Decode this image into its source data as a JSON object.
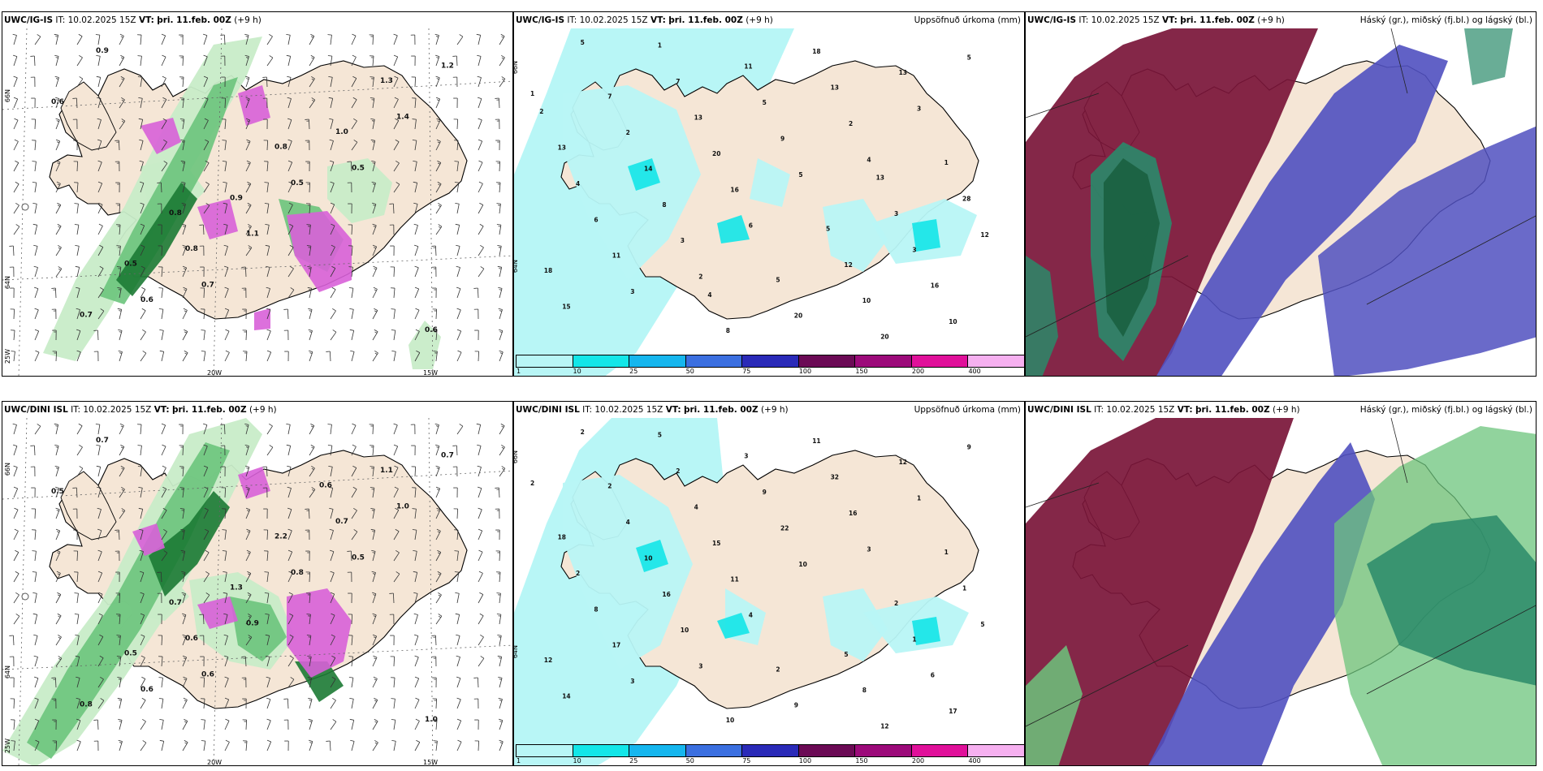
{
  "row1": {
    "p1": {
      "src": "UWC/IG-IS",
      "it": "IT: 10.02.2025 15Z",
      "vt_label": "VT:",
      "vt": "þri. 11.feb. 00Z",
      "lead": "(+9 h)"
    },
    "p2": {
      "src": "UWC/IG-IS",
      "it": "IT: 10.02.2025 15Z",
      "vt_label": "VT:",
      "vt": "þri. 11.feb. 00Z",
      "lead": "(+9 h)",
      "right": "Uppsöfnuð úrkoma (mm)"
    },
    "p3": {
      "src": "UWC/IG-IS",
      "it": "IT: 10.02.2025 15Z",
      "vt_label": "VT:",
      "vt": "þri. 11.feb. 00Z",
      "lead": "(+9 h)",
      "right": "Háský (gr.), miðský (fj.bl.) og lágský (bl.)"
    }
  },
  "row2": {
    "p1": {
      "src": "UWC/DINI ISL",
      "it": "IT: 10.02.2025 15Z",
      "vt_label": "VT:",
      "vt": "þri. 11.feb. 00Z",
      "lead": "(+9 h)"
    },
    "p2": {
      "src": "UWC/DINI ISL",
      "it": "IT: 10.02.2025 15Z",
      "vt_label": "VT:",
      "vt": "þri. 11.feb. 00Z",
      "lead": "(+9 h)",
      "right": "Uppsöfnuð úrkoma (mm)"
    },
    "p3": {
      "src": "UWC/DINI ISL",
      "it": "IT: 10.02.2025 15Z",
      "vt_label": "VT:",
      "vt": "þri. 11.feb. 00Z",
      "lead": "(+9 h)",
      "right": "Háský (gr.), miðský (fj.bl.) og lágský (bl.)"
    }
  },
  "axes": {
    "lat66": "66N",
    "lat64": "64N",
    "lon25": "25W",
    "lon20": "20W",
    "lon15": "15W"
  },
  "colorbar": {
    "ticks": [
      "1",
      "10",
      "25",
      "50",
      "75",
      "100",
      "150",
      "200",
      "400"
    ],
    "colors": [
      "#b8f6f6",
      "#13e6e8",
      "#16b6ee",
      "#3b6fe0",
      "#2a2ab8",
      "#6b0a55",
      "#9c0a7a",
      "#e0109a",
      "#f6b0f0"
    ]
  },
  "colors": {
    "land": "#f5e6d6",
    "sea_precip": "#b8f6f6",
    "green1": "#c8ecc8",
    "green2": "#6cc47c",
    "green3": "#1c7a34",
    "magenta": "#d860d8",
    "maroon": "#7a1538",
    "blue": "#5050c0",
    "teal": "#2a8a6a"
  },
  "precip_labels_row1": [
    "1",
    "2",
    "4",
    "5",
    "6",
    "3",
    "3",
    "5",
    "5",
    "3",
    "2",
    "15",
    "16",
    "13",
    "11",
    "9",
    "10",
    "8",
    "13",
    "18",
    "20",
    "20",
    "6",
    "5",
    "16",
    "14",
    "18",
    "12",
    "13",
    "10",
    "4",
    "11",
    "3",
    "2",
    "20",
    "28",
    "7",
    "12",
    "13",
    "8",
    "3",
    "7",
    "5",
    "1",
    "1",
    "5",
    "2",
    "4",
    "13"
  ],
  "precip_labels_row2": [
    "2",
    "3",
    "3",
    "2",
    "4",
    "1",
    "3",
    "10",
    "9",
    "10",
    "16",
    "14",
    "11",
    "12",
    "17",
    "22",
    "17",
    "16",
    "32",
    "12",
    "15",
    "12",
    "8",
    "9",
    "6",
    "10",
    "11",
    "5",
    "4",
    "8",
    "2",
    "3",
    "1",
    "4",
    "9",
    "1",
    "2",
    "5",
    "18",
    "10",
    "2",
    "2",
    "2",
    "1",
    "5"
  ],
  "wind_labels_row1": [
    "0.6",
    "0.7",
    "0.5",
    "0.9",
    "1.1",
    "1.4",
    "0.6",
    "0.5",
    "1.2",
    "0.8",
    "1.0",
    "0.7",
    "0.9",
    "1.3",
    "0.5",
    "0.8",
    "0.6",
    "0.8"
  ],
  "wind_labels_row2": [
    "0.5",
    "0.6",
    "0.5",
    "0.7",
    "0.9",
    "1.0",
    "0.6",
    "0.8",
    "0.7",
    "0.6",
    "0.7",
    "0.8",
    "1.3",
    "1.1",
    "0.5",
    "2.2",
    "1.0",
    "0.7",
    "0.6"
  ]
}
